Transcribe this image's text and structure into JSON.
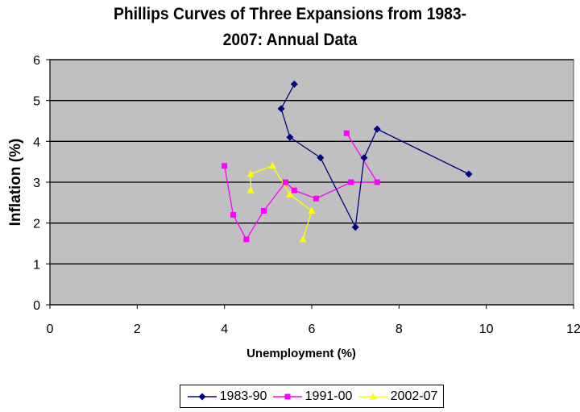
{
  "chart_data": {
    "type": "line",
    "title": "Phillips Curves of Three Expansions from 1983-2007: Annual Data",
    "title_lines": [
      "Phillips Curves of Three Expansions from 1983-",
      "2007: Annual Data"
    ],
    "xlabel": "Unemployment (%)",
    "ylabel": "Inflation (%)",
    "xlim": [
      0,
      12
    ],
    "ylim": [
      0,
      6
    ],
    "xticks": [
      0,
      2,
      4,
      6,
      8,
      10,
      12
    ],
    "yticks": [
      0,
      1,
      2,
      3,
      4,
      5,
      6
    ],
    "grid": "horizontal major gridlines",
    "plot_background": "#C0C0C0",
    "legend_position": "bottom",
    "series": [
      {
        "name": "1983-90",
        "color": "#000080",
        "marker": "diamond",
        "points": [
          [
            9.6,
            3.2
          ],
          [
            7.5,
            4.3
          ],
          [
            7.2,
            3.6
          ],
          [
            7.0,
            1.9
          ],
          [
            6.2,
            3.6
          ],
          [
            5.5,
            4.1
          ],
          [
            5.3,
            4.8
          ],
          [
            5.6,
            5.4
          ]
        ]
      },
      {
        "name": "1991-00",
        "color": "#FF00FF",
        "marker": "square",
        "points": [
          [
            6.8,
            4.2
          ],
          [
            7.5,
            3.0
          ],
          [
            6.9,
            3.0
          ],
          [
            6.1,
            2.6
          ],
          [
            5.6,
            2.8
          ],
          [
            5.4,
            3.0
          ],
          [
            4.9,
            2.3
          ],
          [
            4.5,
            1.6
          ],
          [
            4.2,
            2.2
          ],
          [
            4.0,
            3.4
          ]
        ]
      },
      {
        "name": "2002-07",
        "color": "#FFFF00",
        "marker": "triangle",
        "points": [
          [
            5.8,
            1.6
          ],
          [
            6.0,
            2.3
          ],
          [
            5.5,
            2.7
          ],
          [
            5.1,
            3.4
          ],
          [
            4.6,
            3.2
          ],
          [
            4.6,
            2.8
          ]
        ]
      }
    ]
  }
}
